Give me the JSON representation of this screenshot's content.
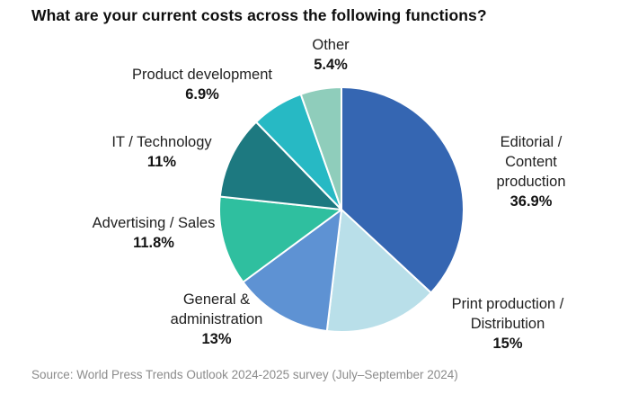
{
  "title": "What are your current costs across the following functions?",
  "source": "Source: World Press Trends Outlook 2024-2025 survey (July–September 2024)",
  "chart_data": {
    "type": "pie",
    "title": "What are your current costs across the following functions?",
    "start_angle_deg": -90,
    "direction": "clockwise",
    "slice_border_color": "#ffffff",
    "legend": "none (direct labels around pie)",
    "slices": [
      {
        "id": "editorial-content-production",
        "label": "Editorial / Content production",
        "label_lines": [
          "Editorial / Content",
          "production"
        ],
        "value": 36.9,
        "pct_label": "36.9%",
        "color": "#3566b2"
      },
      {
        "id": "print-production-distribution",
        "label": "Print production / Distribution",
        "label_lines": [
          "Print production /",
          "Distribution"
        ],
        "value": 15,
        "pct_label": "15%",
        "color": "#b9dfe9"
      },
      {
        "id": "general-administration",
        "label": "General & administration",
        "label_lines": [
          "General &",
          "administration"
        ],
        "value": 13,
        "pct_label": "13%",
        "color": "#5e92d3"
      },
      {
        "id": "advertising-sales",
        "label": "Advertising / Sales",
        "label_lines": [
          "Advertising / Sales"
        ],
        "value": 11.8,
        "pct_label": "11.8%",
        "color": "#2fbf9f"
      },
      {
        "id": "it-technology",
        "label": "IT / Technology",
        "label_lines": [
          "IT / Technology"
        ],
        "value": 11,
        "pct_label": "11%",
        "color": "#1d7980"
      },
      {
        "id": "product-development",
        "label": "Product development",
        "label_lines": [
          "Product development"
        ],
        "value": 6.9,
        "pct_label": "6.9%",
        "color": "#27b9c4"
      },
      {
        "id": "other",
        "label": "Other",
        "label_lines": [
          "Other"
        ],
        "value": 5.4,
        "pct_label": "5.4%",
        "color": "#8fcdbb"
      }
    ]
  }
}
